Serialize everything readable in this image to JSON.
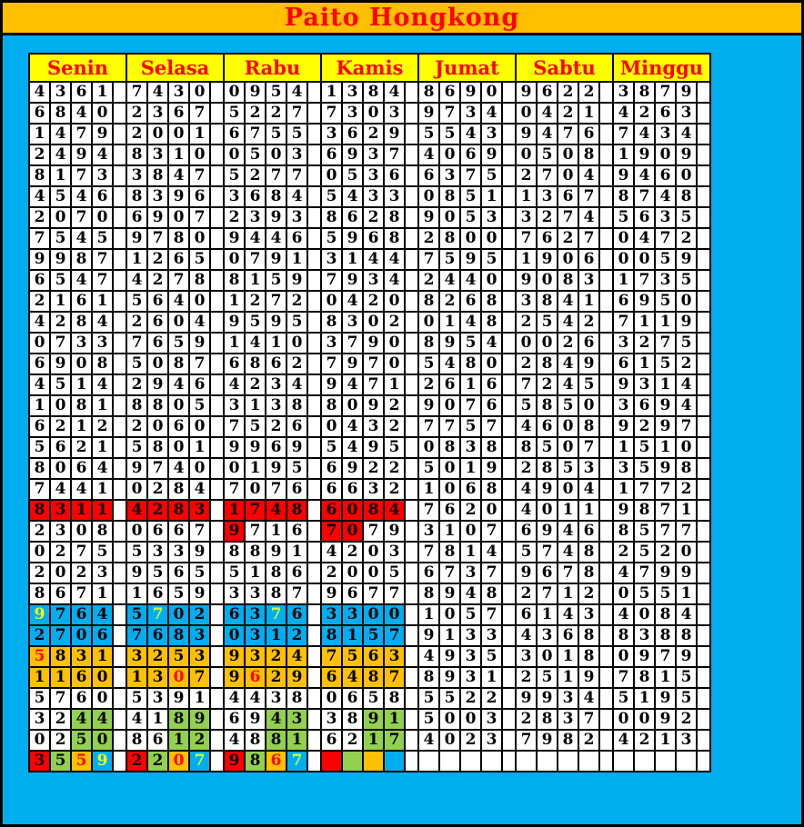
{
  "title": "Paito Hongkong",
  "colors": {
    "page_background": "#00AEEF",
    "frame_border": "#000000",
    "title_bar_bg": "#FFC000",
    "title_text": "#FF0000",
    "day_header_bg": "#FFFF00",
    "day_header_text": "#FF0000",
    "cell_bg": "#FFFFFF",
    "digit_text": "#000000",
    "red": "#FF0000",
    "green": "#92D050",
    "orange": "#FFC000",
    "blue": "#00AEEF",
    "yellow": "#FFFF00",
    "greenyellow": "#CCFF33"
  },
  "chart_data": {
    "type": "table",
    "title": "Paito Hongkong",
    "columns": [
      "Senin",
      "Selasa",
      "Rabu",
      "Kamis",
      "Jumat",
      "Sabtu",
      "Minggu"
    ],
    "rows": [
      [
        "4361",
        "7430",
        "0954",
        "1384",
        "8690",
        "9622",
        "3879"
      ],
      [
        "6840",
        "2367",
        "5227",
        "7303",
        "9734",
        "0421",
        "4263"
      ],
      [
        "1479",
        "2001",
        "6755",
        "3629",
        "5543",
        "9476",
        "7434"
      ],
      [
        "2494",
        "8310",
        "0503",
        "6937",
        "4069",
        "0508",
        "1909"
      ],
      [
        "8173",
        "3847",
        "5277",
        "0536",
        "6375",
        "2704",
        "9460"
      ],
      [
        "4546",
        "8396",
        "3684",
        "5433",
        "0851",
        "1367",
        "8748"
      ],
      [
        "2070",
        "6907",
        "2393",
        "8628",
        "9053",
        "3274",
        "5635"
      ],
      [
        "7545",
        "9780",
        "9446",
        "5968",
        "2800",
        "7627",
        "0472"
      ],
      [
        "9987",
        "1265",
        "0791",
        "3144",
        "7595",
        "1906",
        "0059"
      ],
      [
        "6547",
        "4278",
        "8159",
        "7934",
        "2440",
        "9083",
        "1735"
      ],
      [
        "2161",
        "5640",
        "1272",
        "0420",
        "8268",
        "3841",
        "6950"
      ],
      [
        "4284",
        "2604",
        "9595",
        "8302",
        "0148",
        "2542",
        "7119"
      ],
      [
        "0733",
        "7659",
        "1410",
        "3790",
        "8954",
        "0026",
        "3275"
      ],
      [
        "6908",
        "5087",
        "6862",
        "7970",
        "5480",
        "2849",
        "6152"
      ],
      [
        "4514",
        "2946",
        "4234",
        "9471",
        "2616",
        "7245",
        "9314"
      ],
      [
        "1081",
        "8805",
        "3138",
        "8092",
        "9076",
        "5850",
        "3694"
      ],
      [
        "6212",
        "2060",
        "7526",
        "0432",
        "7757",
        "4608",
        "9297"
      ],
      [
        "5621",
        "5801",
        "9969",
        "5495",
        "0838",
        "8507",
        "1510"
      ],
      [
        "8064",
        "9740",
        "0195",
        "6922",
        "5019",
        "2853",
        "3598"
      ],
      [
        "7441",
        "0284",
        "7076",
        "6632",
        "1068",
        "4904",
        "1772"
      ],
      [
        "8311",
        "4283",
        "1748",
        "6084",
        "7620",
        "4011",
        "9871"
      ],
      [
        "2308",
        "0667",
        "9716",
        "7079",
        "3107",
        "6946",
        "8577"
      ],
      [
        "0275",
        "5339",
        "8891",
        "4203",
        "7814",
        "5748",
        "2520"
      ],
      [
        "2023",
        "9565",
        "5186",
        "2005",
        "6737",
        "9678",
        "4799"
      ],
      [
        "8671",
        "1659",
        "3387",
        "9677",
        "8948",
        "2712",
        "0551"
      ],
      [
        "9764",
        "5702",
        "6376",
        "3300",
        "1057",
        "6143",
        "4084"
      ],
      [
        "2706",
        "7683",
        "0312",
        "8157",
        "9133",
        "4368",
        "8388"
      ],
      [
        "5831",
        "3253",
        "9324",
        "7563",
        "4935",
        "3018",
        "0979"
      ],
      [
        "1160",
        "1307",
        "9629",
        "6487",
        "8931",
        "2519",
        "7815"
      ],
      [
        "5760",
        "5391",
        "4438",
        "0658",
        "5522",
        "9934",
        "5195"
      ],
      [
        "3244",
        "4189",
        "6943",
        "3891",
        "5003",
        "2837",
        "0092"
      ],
      [
        "0250",
        "8612",
        "4881",
        "6217",
        "4023",
        "7982",
        "4213"
      ],
      [
        "3559",
        "2207",
        "9867",
        "",
        "",
        "",
        ""
      ]
    ],
    "highlights": {
      "cell_backgrounds": [
        {
          "r": 20,
          "d": 0,
          "digits": [
            0,
            1,
            2,
            3
          ],
          "color": "red"
        },
        {
          "r": 20,
          "d": 1,
          "digits": [
            0,
            1,
            2,
            3
          ],
          "color": "red"
        },
        {
          "r": 20,
          "d": 2,
          "digits": [
            0,
            1,
            2,
            3
          ],
          "color": "red"
        },
        {
          "r": 20,
          "d": 3,
          "digits": [
            0,
            1,
            2,
            3
          ],
          "color": "red"
        },
        {
          "r": 21,
          "d": 2,
          "digits": [
            0
          ],
          "color": "red"
        },
        {
          "r": 21,
          "d": 3,
          "digits": [
            0,
            1
          ],
          "color": "red"
        },
        {
          "r": 25,
          "d": 0,
          "digits": [
            0,
            1,
            2,
            3
          ],
          "color": "blue"
        },
        {
          "r": 25,
          "d": 1,
          "digits": [
            0,
            1,
            2,
            3
          ],
          "color": "blue"
        },
        {
          "r": 25,
          "d": 2,
          "digits": [
            0,
            1,
            2,
            3
          ],
          "color": "blue"
        },
        {
          "r": 25,
          "d": 3,
          "digits": [
            0,
            1,
            2,
            3
          ],
          "color": "blue"
        },
        {
          "r": 26,
          "d": 0,
          "digits": [
            0,
            1,
            2,
            3
          ],
          "color": "blue"
        },
        {
          "r": 26,
          "d": 1,
          "digits": [
            0,
            1,
            2,
            3
          ],
          "color": "blue"
        },
        {
          "r": 26,
          "d": 2,
          "digits": [
            0,
            1,
            2,
            3
          ],
          "color": "blue"
        },
        {
          "r": 26,
          "d": 3,
          "digits": [
            0,
            1,
            2,
            3
          ],
          "color": "blue"
        },
        {
          "r": 27,
          "d": 0,
          "digits": [
            0,
            1,
            2,
            3
          ],
          "color": "orange"
        },
        {
          "r": 27,
          "d": 1,
          "digits": [
            0,
            1,
            2,
            3
          ],
          "color": "orange"
        },
        {
          "r": 27,
          "d": 2,
          "digits": [
            0,
            1,
            2,
            3
          ],
          "color": "orange"
        },
        {
          "r": 27,
          "d": 3,
          "digits": [
            0,
            1,
            2,
            3
          ],
          "color": "orange"
        },
        {
          "r": 28,
          "d": 0,
          "digits": [
            0,
            1,
            2,
            3
          ],
          "color": "orange"
        },
        {
          "r": 28,
          "d": 1,
          "digits": [
            0,
            1,
            2,
            3
          ],
          "color": "orange"
        },
        {
          "r": 28,
          "d": 2,
          "digits": [
            0,
            1,
            2,
            3
          ],
          "color": "orange"
        },
        {
          "r": 28,
          "d": 3,
          "digits": [
            0,
            1,
            2,
            3
          ],
          "color": "orange"
        },
        {
          "r": 30,
          "d": 0,
          "digits": [
            2,
            3
          ],
          "color": "green"
        },
        {
          "r": 30,
          "d": 1,
          "digits": [
            2,
            3
          ],
          "color": "green"
        },
        {
          "r": 30,
          "d": 2,
          "digits": [
            2,
            3
          ],
          "color": "green"
        },
        {
          "r": 30,
          "d": 3,
          "digits": [
            2,
            3
          ],
          "color": "green"
        },
        {
          "r": 31,
          "d": 0,
          "digits": [
            2,
            3
          ],
          "color": "green"
        },
        {
          "r": 31,
          "d": 1,
          "digits": [
            2,
            3
          ],
          "color": "green"
        },
        {
          "r": 31,
          "d": 2,
          "digits": [
            2,
            3
          ],
          "color": "green"
        },
        {
          "r": 31,
          "d": 3,
          "digits": [
            2,
            3
          ],
          "color": "green"
        },
        {
          "r": 32,
          "d": 0,
          "digits": [
            0
          ],
          "color": "red"
        },
        {
          "r": 32,
          "d": 0,
          "digits": [
            1
          ],
          "color": "green"
        },
        {
          "r": 32,
          "d": 0,
          "digits": [
            2
          ],
          "color": "orange"
        },
        {
          "r": 32,
          "d": 0,
          "digits": [
            3
          ],
          "color": "blue"
        },
        {
          "r": 32,
          "d": 1,
          "digits": [
            0
          ],
          "color": "red"
        },
        {
          "r": 32,
          "d": 1,
          "digits": [
            1
          ],
          "color": "green"
        },
        {
          "r": 32,
          "d": 1,
          "digits": [
            2
          ],
          "color": "orange"
        },
        {
          "r": 32,
          "d": 1,
          "digits": [
            3
          ],
          "color": "blue"
        },
        {
          "r": 32,
          "d": 2,
          "digits": [
            0
          ],
          "color": "red"
        },
        {
          "r": 32,
          "d": 2,
          "digits": [
            1
          ],
          "color": "green"
        },
        {
          "r": 32,
          "d": 2,
          "digits": [
            2
          ],
          "color": "orange"
        },
        {
          "r": 32,
          "d": 2,
          "digits": [
            3
          ],
          "color": "blue"
        },
        {
          "r": 32,
          "d": 3,
          "digits": [
            0
          ],
          "color": "red"
        },
        {
          "r": 32,
          "d": 3,
          "digits": [
            1
          ],
          "color": "green"
        },
        {
          "r": 32,
          "d": 3,
          "digits": [
            2
          ],
          "color": "orange"
        },
        {
          "r": 32,
          "d": 3,
          "digits": [
            3
          ],
          "color": "blue"
        }
      ],
      "text_colors": [
        {
          "r": 25,
          "d": 0,
          "i": 0,
          "color": "yellow"
        },
        {
          "r": 25,
          "d": 1,
          "i": 1,
          "color": "greenyellow"
        },
        {
          "r": 25,
          "d": 2,
          "i": 2,
          "color": "greenyellow"
        },
        {
          "r": 27,
          "d": 0,
          "i": 0,
          "color": "red"
        },
        {
          "r": 28,
          "d": 1,
          "i": 2,
          "color": "red"
        },
        {
          "r": 28,
          "d": 2,
          "i": 1,
          "color": "red"
        },
        {
          "r": 32,
          "d": 0,
          "i": 2,
          "color": "red"
        },
        {
          "r": 32,
          "d": 0,
          "i": 3,
          "color": "yellow"
        },
        {
          "r": 32,
          "d": 1,
          "i": 2,
          "color": "red"
        },
        {
          "r": 32,
          "d": 1,
          "i": 3,
          "color": "greenyellow"
        },
        {
          "r": 32,
          "d": 2,
          "i": 2,
          "color": "red"
        },
        {
          "r": 32,
          "d": 2,
          "i": 3,
          "color": "greenyellow"
        }
      ]
    }
  }
}
